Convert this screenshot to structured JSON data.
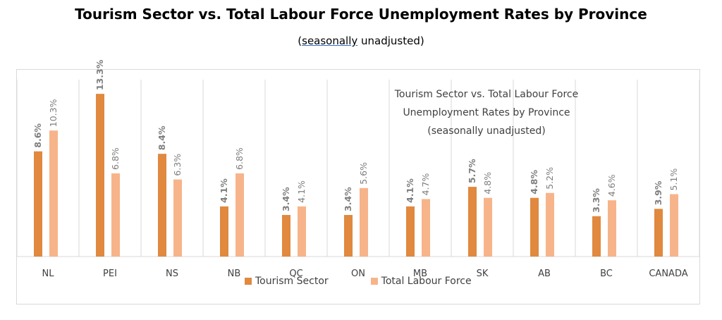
{
  "title": "Tourism Sector vs. Total Labour Force Unemployment Rates by Province",
  "subtitle_word1": "seasonally",
  "subtitle_rest": " unadjusted)",
  "subtitle_open": "(",
  "inner_title": {
    "line1": "Tourism Sector vs. Total Labour Force",
    "line2": "Unemployment Rates by Province",
    "line3": "(seasonally unadjusted)"
  },
  "colors": {
    "tourism": "#e0893f",
    "total": "#f7b48a",
    "grid": "#d9d9d9",
    "label": "#7f7f7f"
  },
  "chart_data": {
    "type": "bar",
    "title": "Tourism Sector vs. Total Labour Force Unemployment Rates by Province",
    "categories": [
      "NL",
      "PEI",
      "NS",
      "NB",
      "QC",
      "ON",
      "MB",
      "SK",
      "AB",
      "BC",
      "CANADA"
    ],
    "series": [
      {
        "name": "Tourism Sector",
        "values": [
          8.6,
          13.3,
          8.4,
          4.1,
          3.4,
          3.4,
          4.1,
          5.7,
          4.8,
          3.3,
          3.9
        ],
        "labels": [
          "8.6%",
          "13.3%",
          "8.4%",
          "4.1%",
          "3.4%",
          "3.4%",
          "4.1%",
          "5.7%",
          "4.8%",
          "3.3%",
          "3.9%"
        ]
      },
      {
        "name": "Total Labour Force",
        "values": [
          10.3,
          6.8,
          6.3,
          6.8,
          4.1,
          5.6,
          4.7,
          4.8,
          5.2,
          4.6,
          5.1
        ],
        "labels": [
          "10.3%",
          "6.8%",
          "6.3%",
          "6.8%",
          "4.1%",
          "5.6%",
          "4.7%",
          "4.8%",
          "5.2%",
          "4.6%",
          "5.1%"
        ]
      }
    ],
    "ylim": [
      0,
      14
    ],
    "grid": "vertical category separators",
    "legend": "bottom"
  }
}
